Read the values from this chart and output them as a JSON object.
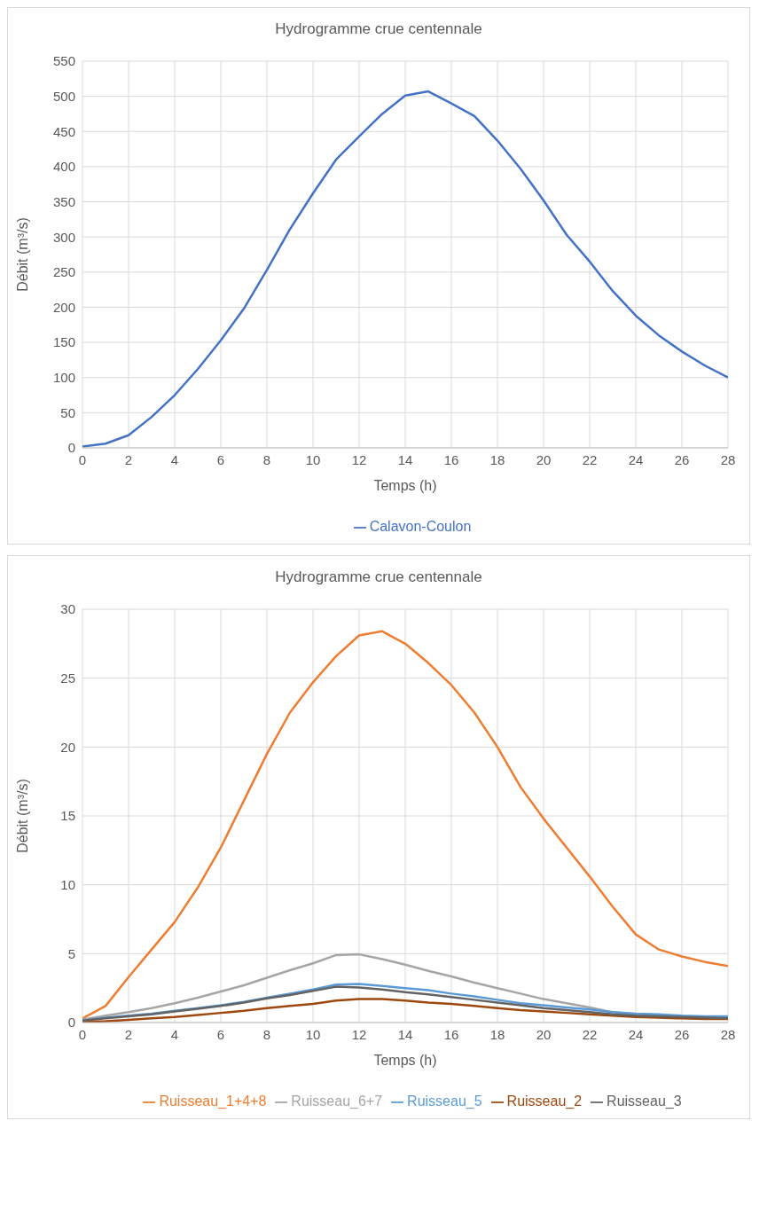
{
  "chart_data": [
    {
      "type": "line",
      "title": "Hydrogramme crue centennale",
      "xlabel": "Temps (h)",
      "ylabel": "Débit (m³/s)",
      "x": [
        0,
        1,
        2,
        3,
        4,
        5,
        6,
        7,
        8,
        9,
        10,
        11,
        12,
        13,
        14,
        15,
        16,
        17,
        18,
        19,
        20,
        21,
        22,
        23,
        24,
        25,
        26,
        27,
        28
      ],
      "series": [
        {
          "name": "Calavon-Coulon",
          "color": "#4472c4",
          "values": [
            2,
            6,
            18,
            44,
            75,
            112,
            153,
            198,
            253,
            311,
            362,
            410,
            443,
            475,
            501,
            507,
            490,
            472,
            437,
            397,
            352,
            303,
            265,
            223,
            188,
            160,
            137,
            117,
            100
          ]
        }
      ],
      "xlim": [
        0,
        28
      ],
      "xticks": [
        0,
        2,
        4,
        6,
        8,
        10,
        12,
        14,
        16,
        18,
        20,
        22,
        24,
        26,
        28
      ],
      "ylim": [
        0,
        550
      ],
      "yticks": [
        0,
        50,
        100,
        150,
        200,
        250,
        300,
        350,
        400,
        450,
        500,
        550
      ],
      "grid": true,
      "legend": "bottom",
      "marker": "none",
      "line_style": "solid"
    },
    {
      "type": "line",
      "title": "Hydrogramme crue centennale",
      "xlabel": "Temps (h)",
      "ylabel": "Débit (m³/s)",
      "x": [
        0,
        1,
        2,
        3,
        4,
        5,
        6,
        7,
        8,
        9,
        10,
        11,
        12,
        13,
        14,
        15,
        16,
        17,
        18,
        19,
        20,
        21,
        22,
        23,
        24,
        25,
        26,
        27,
        28
      ],
      "series": [
        {
          "name": "Ruisseau_1+4+8",
          "color": "#ed7d31",
          "values": [
            0.3,
            1.2,
            3.3,
            5.3,
            7.3,
            9.8,
            12.7,
            16.1,
            19.5,
            22.5,
            24.7,
            26.6,
            28.1,
            28.4,
            27.5,
            26.1,
            24.5,
            22.5,
            20.0,
            17.1,
            14.8,
            12.7,
            10.6,
            8.4,
            6.4,
            5.3,
            4.8,
            4.4,
            4.1
          ]
        },
        {
          "name": "Ruisseau_6+7",
          "color": "#a5a5a5",
          "values": [
            0.2,
            0.5,
            0.75,
            1.05,
            1.4,
            1.8,
            2.25,
            2.7,
            3.25,
            3.8,
            4.3,
            4.9,
            4.95,
            4.6,
            4.2,
            3.75,
            3.35,
            2.9,
            2.5,
            2.1,
            1.7,
            1.4,
            1.1,
            0.75,
            0.6,
            0.5,
            0.45,
            0.35,
            0.3
          ]
        },
        {
          "name": "Ruisseau_5",
          "color": "#5b9bd5",
          "values": [
            0.15,
            0.35,
            0.5,
            0.65,
            0.85,
            1.05,
            1.25,
            1.5,
            1.8,
            2.1,
            2.4,
            2.75,
            2.8,
            2.65,
            2.5,
            2.35,
            2.1,
            1.9,
            1.65,
            1.4,
            1.25,
            1.1,
            0.95,
            0.75,
            0.65,
            0.6,
            0.5,
            0.45,
            0.45
          ]
        },
        {
          "name": "Ruisseau_2",
          "color": "#9e480e",
          "values": [
            0.05,
            0.1,
            0.2,
            0.3,
            0.4,
            0.55,
            0.7,
            0.85,
            1.05,
            1.2,
            1.35,
            1.6,
            1.7,
            1.7,
            1.6,
            1.45,
            1.35,
            1.2,
            1.05,
            0.9,
            0.8,
            0.7,
            0.6,
            0.5,
            0.4,
            0.35,
            0.3,
            0.25,
            0.25
          ]
        },
        {
          "name": "Ruisseau_3",
          "color": "#636363",
          "values": [
            0.15,
            0.3,
            0.45,
            0.6,
            0.8,
            1.0,
            1.2,
            1.45,
            1.75,
            2.0,
            2.3,
            2.6,
            2.55,
            2.4,
            2.2,
            2.05,
            1.85,
            1.65,
            1.45,
            1.25,
            1.05,
            0.9,
            0.75,
            0.6,
            0.5,
            0.45,
            0.4,
            0.35,
            0.3
          ]
        }
      ],
      "xlim": [
        0,
        28
      ],
      "xticks": [
        0,
        2,
        4,
        6,
        8,
        10,
        12,
        14,
        16,
        18,
        20,
        22,
        24,
        26,
        28
      ],
      "ylim": [
        0,
        30
      ],
      "yticks": [
        0,
        5,
        10,
        15,
        20,
        25,
        30
      ],
      "grid": true,
      "legend": "bottom",
      "marker": "none",
      "line_style": "solid"
    }
  ]
}
